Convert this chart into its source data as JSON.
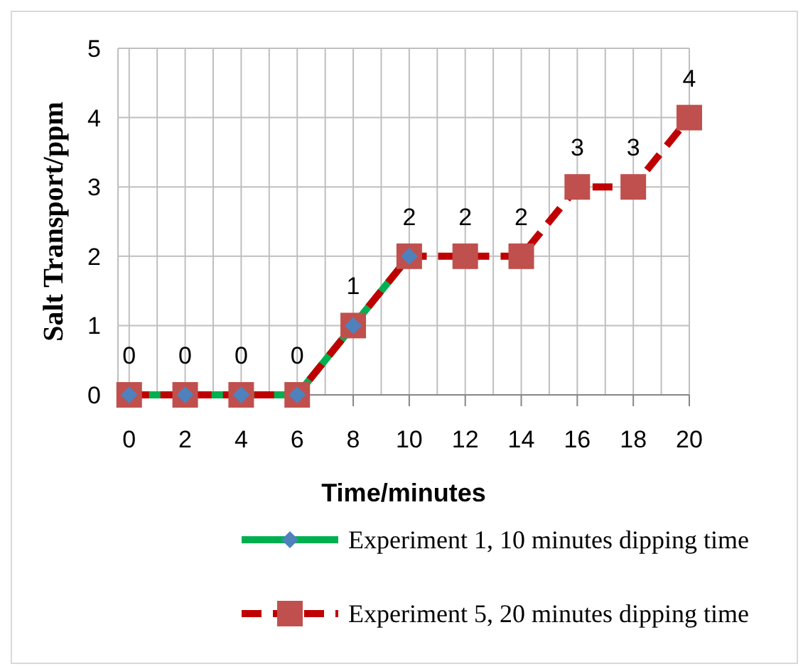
{
  "chart_data": {
    "type": "line",
    "xlabel": "Time/minutes",
    "ylabel": "Salt Transport/ppm",
    "xlim": [
      -0.4,
      20
    ],
    "ylim": [
      0,
      5
    ],
    "xticks": [
      0,
      {
        "value": 1,
        "label": null
      },
      2,
      {
        "value": 3,
        "label": null
      },
      4,
      {
        "value": 5,
        "label": null
      },
      6,
      {
        "value": 7,
        "label": null
      },
      8,
      {
        "value": 9,
        "label": null
      },
      10,
      {
        "value": 11,
        "label": null
      },
      12,
      {
        "value": 13,
        "label": null
      },
      14,
      {
        "value": 15,
        "label": null
      },
      16,
      {
        "value": 17,
        "label": null
      },
      18,
      {
        "value": 19,
        "label": null
      },
      20
    ],
    "yticks": [
      0,
      1,
      2,
      3,
      4,
      5
    ],
    "grid": true,
    "legend": "bottom",
    "series": [
      {
        "name": "Experiment 1, 10 minutes dipping time",
        "color": "#00b050",
        "marker": "diamond",
        "line_style": "solid",
        "x": [
          0,
          2,
          4,
          6,
          8,
          10
        ],
        "values": [
          0,
          0,
          0,
          0,
          1,
          2
        ]
      },
      {
        "name": "Experiment 5, 20 minutes dipping time",
        "color": "#c00000",
        "marker": "square",
        "line_style": "dashed",
        "x": [
          0,
          2,
          4,
          6,
          8,
          10,
          12,
          14,
          16,
          18,
          20
        ],
        "values": [
          0,
          0,
          0,
          0,
          1,
          2,
          2,
          2,
          3,
          3,
          4
        ],
        "value_labels": [
          "0",
          "0",
          "0",
          "0",
          "1",
          "2",
          "2",
          "2",
          "3",
          "3",
          "4"
        ]
      }
    ]
  }
}
